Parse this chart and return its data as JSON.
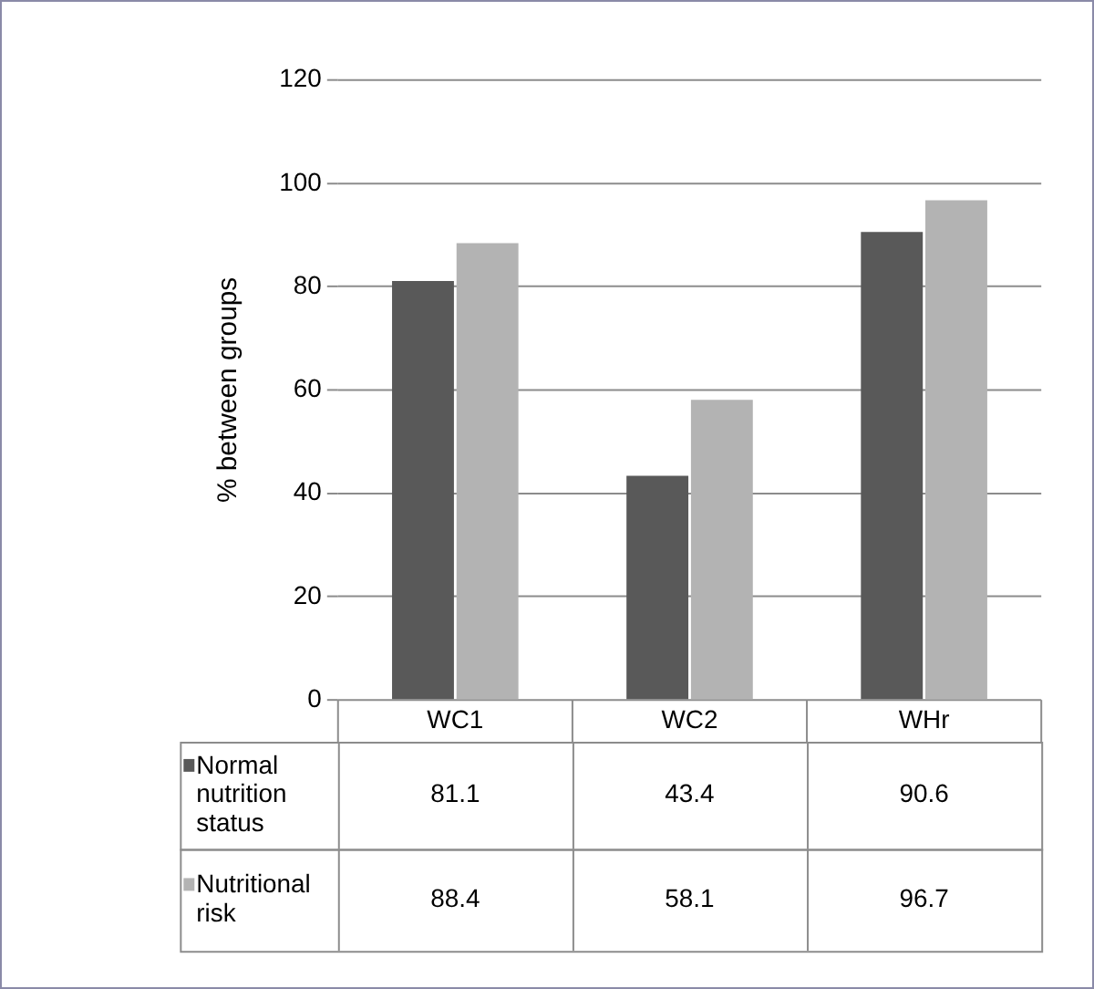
{
  "chart_data": {
    "type": "bar",
    "ylabel": "% between groups",
    "categories": [
      "WC1",
      "WC2",
      "WHr"
    ],
    "series": [
      {
        "name": "Normal nutrition status",
        "color": "#595959",
        "values": [
          81.1,
          43.4,
          90.6
        ]
      },
      {
        "name": "Nutritional risk",
        "color": "#b3b3b3",
        "values": [
          88.4,
          58.1,
          96.7
        ]
      }
    ],
    "ylim": [
      0,
      120
    ],
    "yticks": [
      0,
      20,
      40,
      60,
      80,
      100,
      120
    ],
    "grid": "y",
    "legend": "bottom left",
    "data_labels": true
  }
}
